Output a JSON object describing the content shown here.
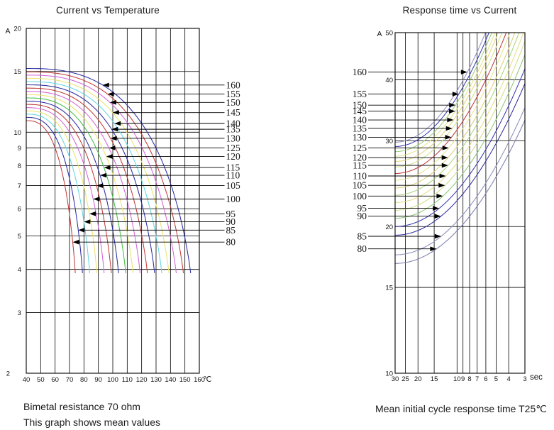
{
  "page": {
    "background": "#ffffff",
    "text_color": "#1a1a1a"
  },
  "chart_data": [
    {
      "id": "current-vs-temperature",
      "type": "line",
      "title": "Current vs Temperature",
      "xlabel": "℃",
      "ylabel": "A",
      "x_scale": "linear",
      "y_scale": "log",
      "x_range": [
        40,
        160
      ],
      "y_range": [
        2,
        20
      ],
      "x_ticks": [
        40,
        50,
        60,
        70,
        80,
        90,
        100,
        110,
        120,
        130,
        140,
        150,
        160
      ],
      "y_ticks": [
        20,
        15,
        10,
        9,
        8,
        7,
        6,
        5,
        4,
        3,
        2
      ],
      "grid": true,
      "legend_position": "right-callout-labels",
      "min_current": 3.9,
      "captions": [
        "Bimetal resistance 70 ohm",
        "This graph shows mean values"
      ],
      "series": [
        {
          "label": "160",
          "color": "#2b2ba3",
          "current_at_40C": 15.3,
          "end_temp": 154,
          "callout_current": 13.7
        },
        {
          "label": "155",
          "color": "#c23b3b",
          "current_at_40C": 14.96,
          "end_temp": 149,
          "callout_current": 12.9
        },
        {
          "label": "150",
          "color": "#d465d4",
          "current_at_40C": 14.64,
          "end_temp": 144,
          "callout_current": 12.2
        },
        {
          "label": "145",
          "color": "#e9e46e",
          "current_at_40C": 14.33,
          "end_temp": 139,
          "callout_current": 11.4
        },
        {
          "label": "140",
          "color": "#62d8e0",
          "current_at_40C": 14.02,
          "end_temp": 134,
          "callout_current": 10.6
        },
        {
          "label": "135",
          "color": "#2b2ba3",
          "current_at_40C": 13.72,
          "end_temp": 129,
          "callout_current": 10.2
        },
        {
          "label": "130",
          "color": "#c23b3b",
          "current_at_40C": 13.42,
          "end_temp": 124,
          "callout_current": 9.6
        },
        {
          "label": "125",
          "color": "#d465d4",
          "current_at_40C": 13.13,
          "end_temp": 119,
          "callout_current": 9.0
        },
        {
          "label": "120",
          "color": "#e9e46e",
          "current_at_40C": 12.85,
          "end_temp": 114,
          "callout_current": 8.5
        },
        {
          "label": "115",
          "color": "#46bf46",
          "current_at_40C": 12.57,
          "end_temp": 109,
          "callout_current": 7.9
        },
        {
          "label": "110",
          "color": "#2b2ba3",
          "current_at_40C": 12.3,
          "end_temp": 104,
          "callout_current": 7.5
        },
        {
          "label": "105",
          "color": "#c23b3b",
          "current_at_40C": 12.04,
          "end_temp": 99,
          "callout_current": 7.0
        },
        {
          "label": "100",
          "color": "#d465d4",
          "current_at_40C": 11.78,
          "end_temp": 94,
          "callout_current": 6.4
        },
        {
          "label": "95",
          "color": "#e9e46e",
          "current_at_40C": 11.53,
          "end_temp": 89,
          "callout_current": 5.8
        },
        {
          "label": "90",
          "color": "#62d8e0",
          "current_at_40C": 11.28,
          "end_temp": 84,
          "callout_current": 5.5
        },
        {
          "label": "85",
          "color": "#2b2ba3",
          "current_at_40C": 11.04,
          "end_temp": 79,
          "callout_current": 5.2
        },
        {
          "label": "80",
          "color": "#c23b3b",
          "current_at_40C": 10.8,
          "end_temp": 74,
          "callout_current": 4.8
        }
      ]
    },
    {
      "id": "response-time-vs-current",
      "type": "line",
      "title": "Response time vs Current",
      "xlabel": "sec",
      "ylabel": "A",
      "x_scale": "log-reversed",
      "y_scale": "log",
      "x_range": [
        30,
        3
      ],
      "y_range": [
        10,
        50
      ],
      "x_ticks": [
        30,
        25,
        20,
        15,
        10,
        9,
        8,
        7,
        6,
        5,
        4,
        3
      ],
      "y_ticks": [
        50,
        40,
        30,
        20,
        15,
        10
      ],
      "grid": true,
      "legend_position": "left-callout-labels",
      "captions": [
        "Mean initial cycle response time T25℃"
      ],
      "series": [
        {
          "label": "160",
          "color": "#9292c2",
          "current_at_30s": 29.8,
          "current_at_10s": 38.0,
          "callout_current": 41.5
        },
        {
          "label": "155",
          "color": "#3a3aae",
          "current_at_30s": 29.2,
          "current_at_10s": 36.9,
          "callout_current": 37.4
        },
        {
          "label": "150",
          "color": "#9ccf7d",
          "current_at_30s": 28.5,
          "current_at_10s": 35.9,
          "callout_current": 35.5
        },
        {
          "label": "145",
          "color": "#e9e48d",
          "current_at_30s": 27.9,
          "current_at_10s": 34.9,
          "callout_current": 34.5
        },
        {
          "label": "140",
          "color": "#e2d77c",
          "current_at_30s": 27.2,
          "current_at_10s": 33.9,
          "callout_current": 33.1
        },
        {
          "label": "135",
          "color": "#d5e089",
          "current_at_30s": 26.5,
          "current_at_10s": 32.8,
          "callout_current": 31.8
        },
        {
          "label": "130",
          "color": "#c23b3b",
          "current_at_30s": 25.7,
          "current_at_10s": 31.6,
          "callout_current": 30.5
        },
        {
          "label": "125",
          "color": "#e9e48d",
          "current_at_30s": 24.9,
          "current_at_10s": 30.5,
          "callout_current": 29.0
        },
        {
          "label": "120",
          "color": "#dcd178",
          "current_at_30s": 24.0,
          "current_at_10s": 29.2,
          "callout_current": 27.7
        },
        {
          "label": "115",
          "color": "#a9d57f",
          "current_at_30s": 23.2,
          "current_at_10s": 28.1,
          "callout_current": 26.7
        },
        {
          "label": "110",
          "color": "#e6df85",
          "current_at_30s": 22.4,
          "current_at_10s": 27.0,
          "callout_current": 25.4
        },
        {
          "label": "105",
          "color": "#cfdf88",
          "current_at_30s": 21.6,
          "current_at_10s": 25.9,
          "callout_current": 24.3
        },
        {
          "label": "100",
          "color": "#8cc878",
          "current_at_30s": 20.8,
          "current_at_10s": 24.8,
          "callout_current": 23.1
        },
        {
          "label": "95",
          "color": "#3a3aae",
          "current_at_30s": 20.0,
          "current_at_10s": 23.7,
          "callout_current": 21.8
        },
        {
          "label": "90",
          "color": "#2f2f9e",
          "current_at_30s": 19.2,
          "current_at_10s": 22.6,
          "callout_current": 21.0
        },
        {
          "label": "85",
          "color": "#8d8dbb",
          "current_at_30s": 17.5,
          "current_at_10s": 20.5,
          "callout_current": 19.1
        },
        {
          "label": "80",
          "color": "#7d7dae",
          "current_at_30s": 16.8,
          "current_at_10s": 19.6,
          "callout_current": 18.0
        }
      ]
    }
  ]
}
